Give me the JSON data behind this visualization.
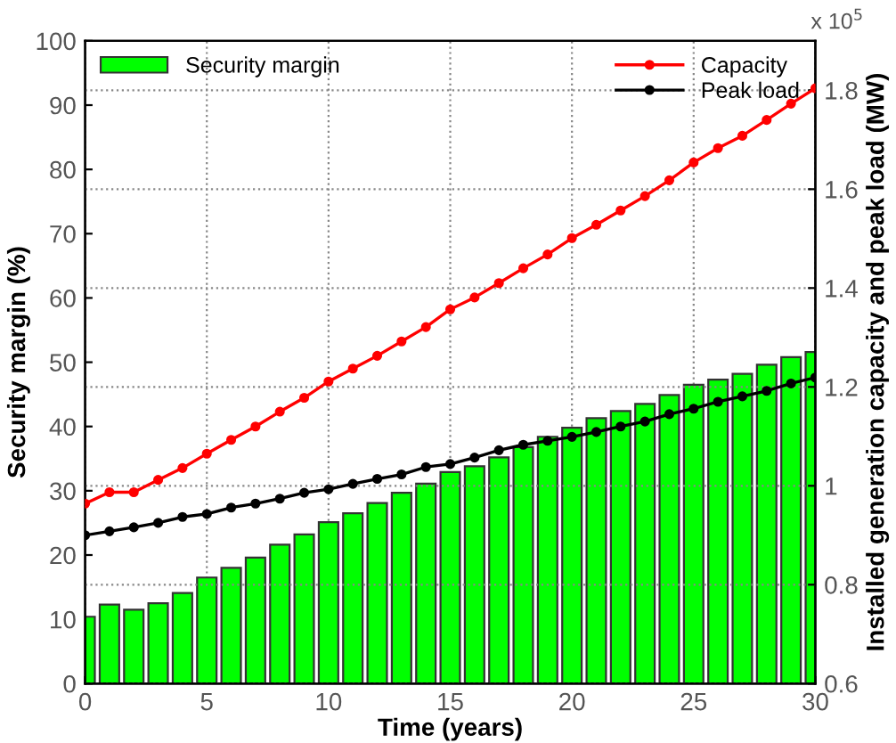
{
  "chart_data": {
    "type": "bar",
    "xlabel": "Time (years)",
    "ylabel": "Security margin (%)",
    "y2label": "Installed generation capacity and peak load (MW)",
    "x": [
      0,
      1,
      2,
      3,
      4,
      5,
      6,
      7,
      8,
      9,
      10,
      11,
      12,
      13,
      14,
      15,
      16,
      17,
      18,
      19,
      20,
      21,
      22,
      23,
      24,
      25,
      26,
      27,
      28,
      29,
      30
    ],
    "series": [
      {
        "name": "Security margin",
        "color": "#00ff00",
        "values": [
          10.4,
          12.3,
          11.5,
          12.5,
          14.1,
          16.5,
          18.0,
          19.6,
          21.6,
          23.2,
          25.1,
          26.5,
          28.1,
          29.7,
          31.1,
          32.9,
          33.8,
          35.2,
          36.8,
          38.4,
          39.8,
          41.3,
          42.4,
          43.5,
          44.9,
          46.5,
          47.3,
          48.2,
          49.6,
          50.8,
          51.6
        ]
      },
      {
        "name": "Capacity",
        "type": "line",
        "axis": "y2",
        "color": "#ff0000",
        "values": [
          0.964,
          0.987,
          0.987,
          1.012,
          1.036,
          1.065,
          1.093,
          1.12,
          1.15,
          1.178,
          1.211,
          1.237,
          1.263,
          1.292,
          1.321,
          1.357,
          1.381,
          1.41,
          1.44,
          1.468,
          1.501,
          1.528,
          1.557,
          1.586,
          1.618,
          1.654,
          1.683,
          1.708,
          1.74,
          1.773,
          1.804
        ]
      },
      {
        "name": "Peak load",
        "type": "line",
        "axis": "y2",
        "color": "#000000",
        "values": [
          0.9,
          0.908,
          0.916,
          0.925,
          0.937,
          0.943,
          0.956,
          0.964,
          0.974,
          0.986,
          0.993,
          1.004,
          1.014,
          1.023,
          1.038,
          1.044,
          1.057,
          1.072,
          1.083,
          1.091,
          1.099,
          1.109,
          1.12,
          1.13,
          1.145,
          1.156,
          1.17,
          1.181,
          1.192,
          1.207,
          1.219
        ]
      }
    ],
    "xlim": [
      0,
      30
    ],
    "xticks": [
      0,
      5,
      10,
      15,
      20,
      25,
      30
    ],
    "ylim": [
      0,
      100
    ],
    "yticks": [
      0,
      10,
      20,
      30,
      40,
      50,
      60,
      70,
      80,
      90,
      100
    ],
    "y2lim": [
      0.6,
      1.9
    ],
    "y2ticks": [
      0.6,
      0.8,
      1,
      1.2,
      1.4,
      1.6,
      1.8
    ],
    "annotations": [
      "x 10$^{5}$"
    ],
    "grid": true,
    "legend": "top",
    "marker": "circle",
    "line_style": "solid"
  }
}
